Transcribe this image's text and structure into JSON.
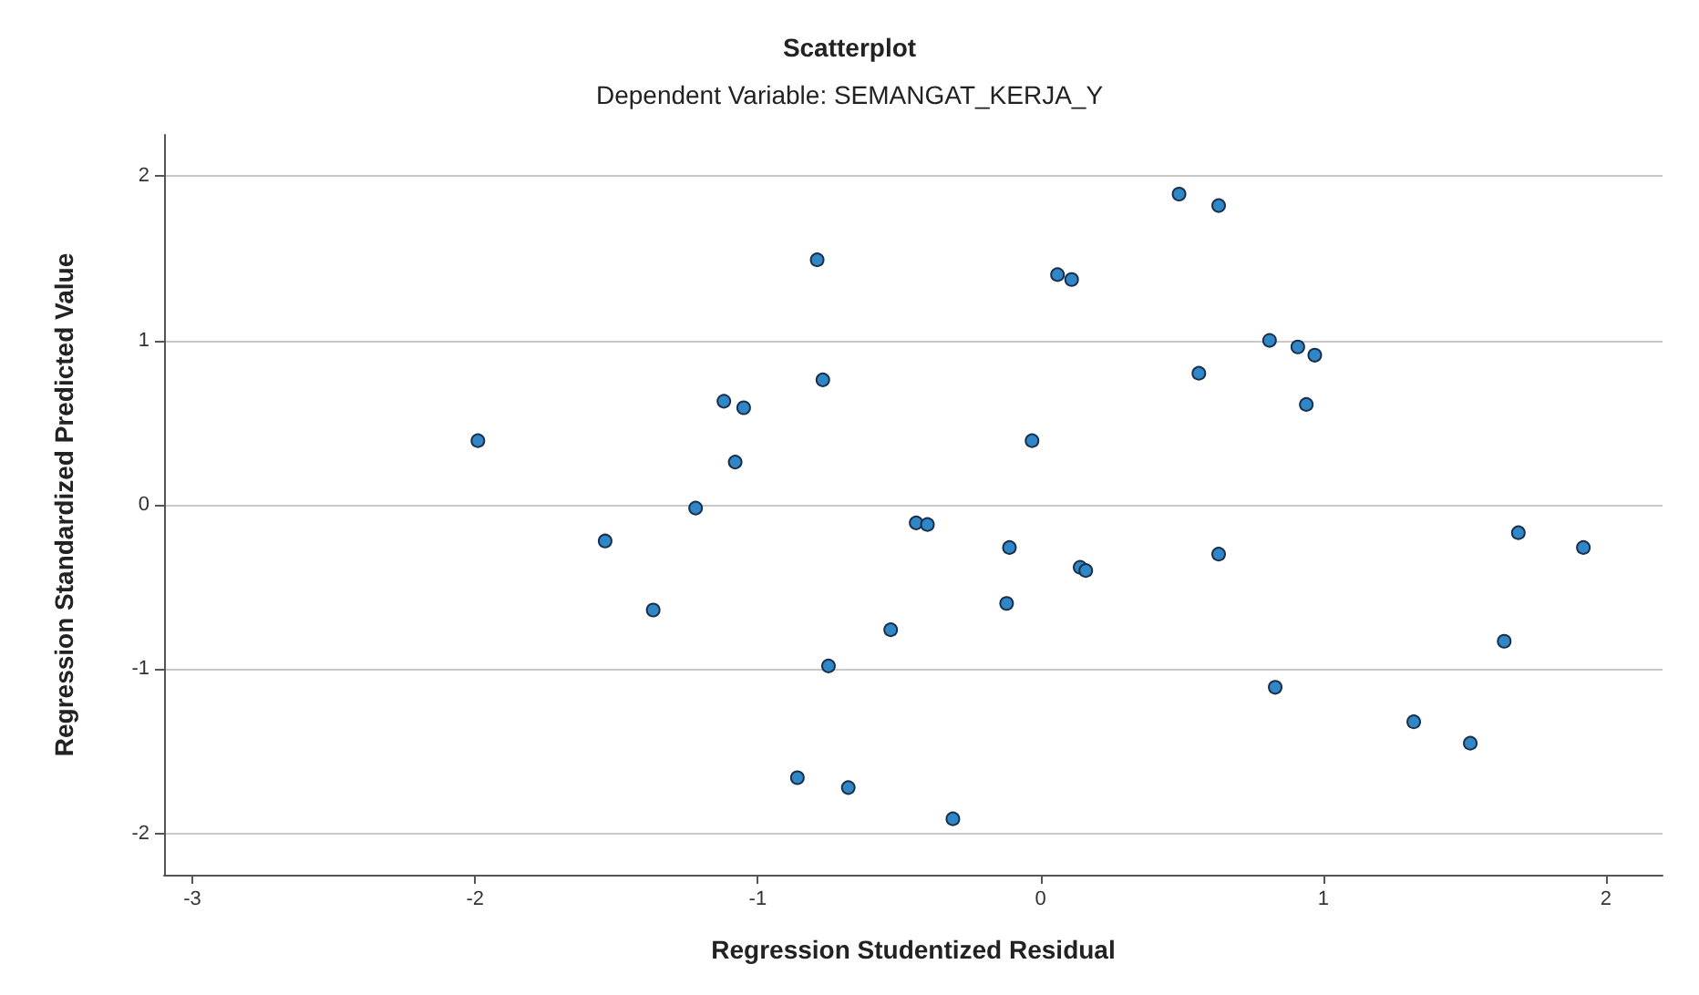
{
  "chart_data": {
    "type": "scatter",
    "title": "Scatterplot",
    "subtitle": "Dependent Variable: SEMANGAT_KERJA_Y",
    "xlabel": "Regression Studentized Residual",
    "ylabel": "Regression Standardized Predicted Value",
    "xlim": [
      -3.1,
      2.2
    ],
    "ylim": [
      -2.25,
      2.25
    ],
    "xticks": [
      -3,
      -2,
      -1,
      0,
      1,
      2
    ],
    "yticks": [
      -2,
      -1,
      0,
      1,
      2
    ],
    "grid": "y",
    "marker": "circle",
    "series": [
      {
        "color": "#2f87c8",
        "x": [
          -1.99,
          -1.54,
          -1.37,
          -1.22,
          -1.12,
          -1.05,
          -1.08,
          -0.79,
          -0.77,
          -0.75,
          -0.86,
          -0.68,
          -0.44,
          -0.4,
          -0.53,
          -0.31,
          -0.11,
          -0.12,
          -0.03,
          0.06,
          0.11,
          0.14,
          0.16,
          0.49,
          0.63,
          0.56,
          0.63,
          0.81,
          0.91,
          0.97,
          0.94,
          0.83,
          1.32,
          1.52,
          1.64,
          1.69,
          1.92
        ],
        "values": [
          0.39,
          -0.22,
          -0.64,
          -0.02,
          0.63,
          0.59,
          0.26,
          1.49,
          0.76,
          -0.98,
          -1.66,
          -1.72,
          -0.11,
          -0.12,
          -0.76,
          -1.91,
          -0.26,
          -0.6,
          0.39,
          1.4,
          1.37,
          -0.38,
          -0.4,
          1.89,
          1.82,
          0.8,
          -0.3,
          1.0,
          0.96,
          0.91,
          0.61,
          -1.11,
          -1.32,
          -1.45,
          -0.83,
          -0.17,
          -0.26
        ]
      }
    ]
  }
}
